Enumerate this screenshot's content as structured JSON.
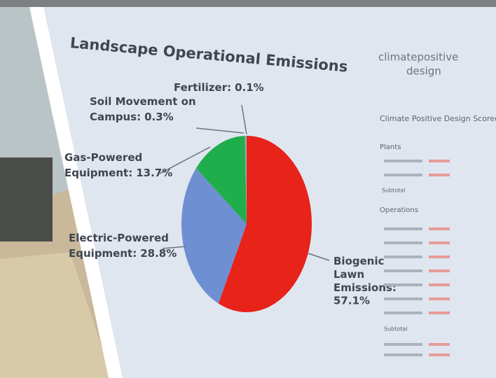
{
  "chart_data": {
    "type": "pie",
    "title": "Landscape Operational Emissions",
    "categories": [
      "Biogenic Lawn Emissions:",
      "Electric-Powered Equipment:",
      "Gas-Powered Equipment:",
      "Soil Movement on Campus:",
      "Fertilizer:"
    ],
    "values": [
      57.1,
      28.8,
      13.7,
      0.3,
      0.1
    ],
    "value_labels": [
      "57.1%",
      "28.8%",
      "13.7%",
      "0.3%",
      "0.1%"
    ],
    "colors": [
      "#e8231a",
      "#6e8fd2",
      "#1fae4b",
      "#9aa3ad",
      "#b0b6bd"
    ]
  },
  "scorecard": {
    "logo": [
      "climatepositive",
      "design"
    ],
    "title": "Climate Positive Design Scorecard",
    "sections": [
      "Plants",
      "Operations"
    ],
    "subtotal": "Subtotal"
  }
}
